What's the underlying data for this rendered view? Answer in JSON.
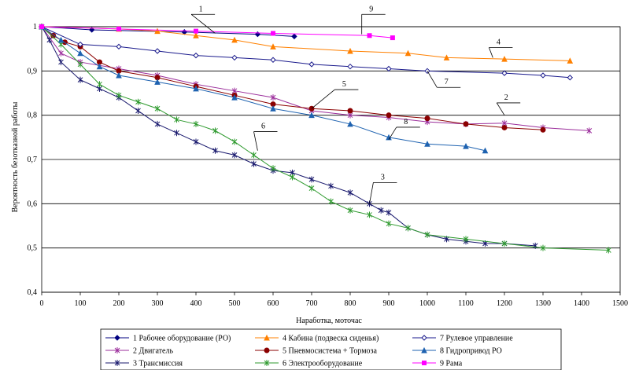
{
  "chart_data": {
    "type": "line",
    "title": "",
    "xlabel": "Наработка, моточас",
    "ylabel": "Вероятность безотказной работы",
    "xlim": [
      0,
      1500
    ],
    "ylim": [
      0.4,
      1.0
    ],
    "x_ticks": [
      "0",
      "100",
      "200",
      "300",
      "400",
      "500",
      "600",
      "700",
      "800",
      "900",
      "1000",
      "1100",
      "1200",
      "1300",
      "1400",
      "1500"
    ],
    "y_ticks": [
      "0,4",
      "0,5",
      "0,6",
      "0,7",
      "0,8",
      "0,9",
      "1"
    ],
    "grid": "horizontal",
    "legend_position": "bottom",
    "series": [
      {
        "name": "1 Рабочее оборудование (РО)",
        "color": "#000080",
        "marker": "diamond",
        "points": [
          [
            0,
            1.0
          ],
          [
            130,
            0.993
          ],
          [
            370,
            0.988
          ],
          [
            560,
            0.983
          ],
          [
            655,
            0.978
          ]
        ]
      },
      {
        "name": "2 Двигатель",
        "color": "#9b2d9b",
        "marker": "star",
        "points": [
          [
            0,
            1.0
          ],
          [
            50,
            0.94
          ],
          [
            100,
            0.92
          ],
          [
            200,
            0.905
          ],
          [
            300,
            0.89
          ],
          [
            400,
            0.87
          ],
          [
            500,
            0.855
          ],
          [
            600,
            0.84
          ],
          [
            700,
            0.81
          ],
          [
            800,
            0.8
          ],
          [
            900,
            0.795
          ],
          [
            1000,
            0.785
          ],
          [
            1100,
            0.78
          ],
          [
            1200,
            0.782
          ],
          [
            1300,
            0.772
          ],
          [
            1420,
            0.765
          ]
        ]
      },
      {
        "name": "3 Трансмиссия",
        "color": "#1a1a6e",
        "marker": "star",
        "points": [
          [
            0,
            1.0
          ],
          [
            20,
            0.97
          ],
          [
            50,
            0.92
          ],
          [
            100,
            0.88
          ],
          [
            150,
            0.86
          ],
          [
            200,
            0.84
          ],
          [
            250,
            0.81
          ],
          [
            300,
            0.78
          ],
          [
            350,
            0.76
          ],
          [
            400,
            0.74
          ],
          [
            450,
            0.72
          ],
          [
            500,
            0.71
          ],
          [
            550,
            0.69
          ],
          [
            600,
            0.675
          ],
          [
            650,
            0.67
          ],
          [
            700,
            0.655
          ],
          [
            750,
            0.64
          ],
          [
            800,
            0.625
          ],
          [
            850,
            0.6
          ],
          [
            880,
            0.585
          ],
          [
            900,
            0.58
          ],
          [
            950,
            0.545
          ],
          [
            1000,
            0.53
          ],
          [
            1050,
            0.52
          ],
          [
            1100,
            0.515
          ],
          [
            1150,
            0.51
          ],
          [
            1200,
            0.51
          ],
          [
            1280,
            0.505
          ]
        ]
      },
      {
        "name": "4 Кабина (подвеска сиденья)",
        "color": "#ff8000",
        "marker": "triangle",
        "points": [
          [
            0,
            1.0
          ],
          [
            200,
            0.995
          ],
          [
            300,
            0.99
          ],
          [
            400,
            0.98
          ],
          [
            500,
            0.97
          ],
          [
            600,
            0.955
          ],
          [
            800,
            0.945
          ],
          [
            950,
            0.94
          ],
          [
            1050,
            0.93
          ],
          [
            1200,
            0.927
          ],
          [
            1370,
            0.923
          ]
        ]
      },
      {
        "name": "5 Пневмосистема + Тормоза",
        "color": "#8b0000",
        "marker": "circle",
        "points": [
          [
            0,
            1.0
          ],
          [
            30,
            0.98
          ],
          [
            60,
            0.965
          ],
          [
            100,
            0.955
          ],
          [
            150,
            0.92
          ],
          [
            200,
            0.9
          ],
          [
            300,
            0.885
          ],
          [
            400,
            0.865
          ],
          [
            500,
            0.845
          ],
          [
            600,
            0.825
          ],
          [
            700,
            0.815
          ],
          [
            800,
            0.81
          ],
          [
            900,
            0.8
          ],
          [
            1000,
            0.793
          ],
          [
            1100,
            0.78
          ],
          [
            1200,
            0.772
          ],
          [
            1300,
            0.767
          ]
        ]
      },
      {
        "name": "6 Электрооборудование",
        "color": "#2e9a2e",
        "marker": "star",
        "points": [
          [
            0,
            1.0
          ],
          [
            50,
            0.96
          ],
          [
            100,
            0.915
          ],
          [
            150,
            0.87
          ],
          [
            200,
            0.845
          ],
          [
            250,
            0.83
          ],
          [
            300,
            0.815
          ],
          [
            350,
            0.79
          ],
          [
            400,
            0.78
          ],
          [
            450,
            0.765
          ],
          [
            500,
            0.74
          ],
          [
            550,
            0.71
          ],
          [
            600,
            0.68
          ],
          [
            650,
            0.66
          ],
          [
            700,
            0.635
          ],
          [
            750,
            0.605
          ],
          [
            800,
            0.585
          ],
          [
            850,
            0.575
          ],
          [
            900,
            0.555
          ],
          [
            950,
            0.545
          ],
          [
            1000,
            0.53
          ],
          [
            1100,
            0.52
          ],
          [
            1200,
            0.51
          ],
          [
            1300,
            0.5
          ],
          [
            1470,
            0.495
          ]
        ]
      },
      {
        "name": "7 Рулевое управление",
        "color": "#1a1a8c",
        "marker": "open-diamond",
        "points": [
          [
            0,
            1.0
          ],
          [
            100,
            0.96
          ],
          [
            200,
            0.955
          ],
          [
            300,
            0.945
          ],
          [
            400,
            0.935
          ],
          [
            500,
            0.93
          ],
          [
            600,
            0.925
          ],
          [
            700,
            0.915
          ],
          [
            800,
            0.91
          ],
          [
            900,
            0.905
          ],
          [
            1000,
            0.9
          ],
          [
            1200,
            0.895
          ],
          [
            1300,
            0.89
          ],
          [
            1370,
            0.885
          ]
        ]
      },
      {
        "name": "8 Гидропривод РО",
        "color": "#1e62b0",
        "marker": "triangle",
        "points": [
          [
            0,
            1.0
          ],
          [
            50,
            0.97
          ],
          [
            100,
            0.94
          ],
          [
            150,
            0.91
          ],
          [
            200,
            0.89
          ],
          [
            300,
            0.875
          ],
          [
            400,
            0.86
          ],
          [
            500,
            0.84
          ],
          [
            600,
            0.815
          ],
          [
            700,
            0.8
          ],
          [
            800,
            0.78
          ],
          [
            900,
            0.75
          ],
          [
            1000,
            0.735
          ],
          [
            1100,
            0.73
          ],
          [
            1150,
            0.72
          ]
        ]
      },
      {
        "name": "9 Рама",
        "color": "#ff00ff",
        "marker": "square",
        "points": [
          [
            0,
            1.0
          ],
          [
            200,
            0.995
          ],
          [
            400,
            0.99
          ],
          [
            600,
            0.985
          ],
          [
            850,
            0.98
          ],
          [
            910,
            0.975
          ]
        ]
      }
    ],
    "callouts": [
      "1",
      "2",
      "3",
      "4",
      "5",
      "6",
      "7",
      "8",
      "9"
    ]
  }
}
